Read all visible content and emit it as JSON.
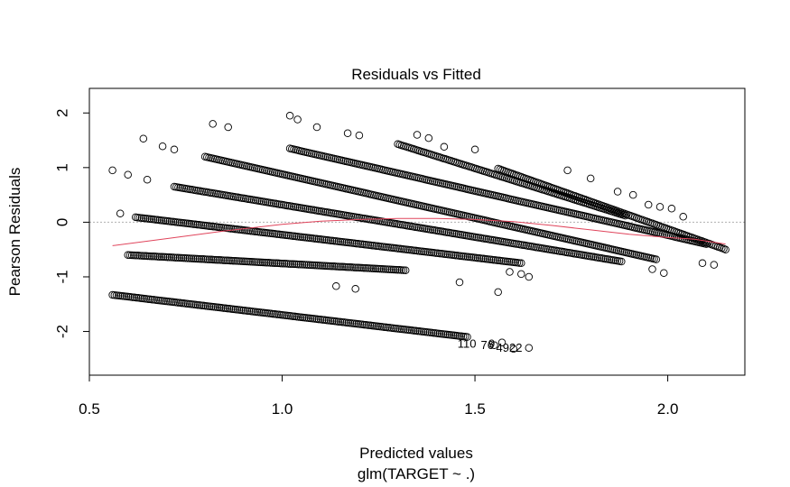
{
  "chart_data": {
    "type": "scatter",
    "title": "Residuals vs Fitted",
    "xlabel": "Predicted values",
    "xlabel2": "glm(TARGET ~ .)",
    "ylabel": "Pearson Residuals",
    "xlim": [
      0.5,
      2.2
    ],
    "ylim": [
      -2.8,
      2.45
    ],
    "xticks": [
      "0.5",
      "1.0",
      "1.5",
      "2.0"
    ],
    "xtick_values": [
      0.5,
      1.0,
      1.5,
      2.0
    ],
    "yticks": [
      "-2",
      "-1",
      "0",
      "1",
      "2"
    ],
    "ytick_values": [
      -2,
      -1,
      0,
      1,
      2
    ],
    "grid": false,
    "reference_line": {
      "y": 0,
      "style": "dotted",
      "color": "#b0b0b0"
    },
    "colors": {
      "points": "#000000",
      "smooth": "#e0455c",
      "reference": "#b0b0b0"
    },
    "bands": [
      {
        "x_start": 0.56,
        "x_end": 1.48,
        "y_start": -1.33,
        "y_end": -2.1
      },
      {
        "x_start": 0.6,
        "x_end": 1.32,
        "y_start": -0.6,
        "y_end": -0.88
      },
      {
        "x_start": 0.62,
        "x_end": 1.62,
        "y_start": 0.09,
        "y_end": -0.75
      },
      {
        "x_start": 0.72,
        "x_end": 1.88,
        "y_start": 0.65,
        "y_end": -0.72
      },
      {
        "x_start": 0.8,
        "x_end": 1.97,
        "y_start": 1.2,
        "y_end": -0.68
      },
      {
        "x_start": 1.02,
        "x_end": 2.1,
        "y_start": 1.35,
        "y_end": -0.4
      },
      {
        "x_start": 1.3,
        "x_end": 1.89,
        "y_start": 1.43,
        "y_end": 0.12
      },
      {
        "x_start": 1.56,
        "x_end": 2.15,
        "y_start": 0.98,
        "y_end": -0.5
      }
    ],
    "extra_points": [
      [
        0.56,
        0.95
      ],
      [
        0.58,
        0.16
      ],
      [
        0.6,
        0.87
      ],
      [
        0.64,
        1.53
      ],
      [
        0.65,
        0.78
      ],
      [
        0.69,
        1.39
      ],
      [
        0.72,
        1.33
      ],
      [
        0.82,
        1.8
      ],
      [
        0.86,
        1.74
      ],
      [
        1.02,
        1.95
      ],
      [
        1.04,
        1.88
      ],
      [
        1.09,
        1.74
      ],
      [
        1.14,
        -1.17
      ],
      [
        1.17,
        1.63
      ],
      [
        1.19,
        -1.22
      ],
      [
        1.2,
        1.59
      ],
      [
        1.35,
        1.6
      ],
      [
        1.38,
        1.54
      ],
      [
        1.42,
        1.38
      ],
      [
        1.46,
        -1.1
      ],
      [
        1.5,
        1.33
      ],
      [
        1.56,
        -1.28
      ],
      [
        1.59,
        -0.91
      ],
      [
        1.62,
        -0.95
      ],
      [
        1.64,
        -1.0
      ],
      [
        1.74,
        0.95
      ],
      [
        1.8,
        0.8
      ],
      [
        1.87,
        0.56
      ],
      [
        1.91,
        0.5
      ],
      [
        1.95,
        0.32
      ],
      [
        1.98,
        0.28
      ],
      [
        2.01,
        0.25
      ],
      [
        2.04,
        0.1
      ],
      [
        1.96,
        -0.86
      ],
      [
        1.99,
        -0.93
      ],
      [
        2.09,
        -0.75
      ],
      [
        2.12,
        -0.78
      ],
      [
        1.55,
        -2.25
      ],
      [
        1.57,
        -2.2
      ],
      [
        1.6,
        -2.32
      ],
      [
        1.64,
        -2.3
      ]
    ],
    "smooth_line": [
      [
        0.56,
        -0.43
      ],
      [
        0.7,
        -0.3
      ],
      [
        0.85,
        -0.16
      ],
      [
        1.0,
        -0.04
      ],
      [
        1.1,
        0.02
      ],
      [
        1.2,
        0.05
      ],
      [
        1.3,
        0.07
      ],
      [
        1.4,
        0.07
      ],
      [
        1.5,
        0.05
      ],
      [
        1.6,
        0.01
      ],
      [
        1.7,
        -0.06
      ],
      [
        1.8,
        -0.14
      ],
      [
        1.9,
        -0.22
      ],
      [
        2.0,
        -0.28
      ],
      [
        2.07,
        -0.31
      ],
      [
        2.15,
        -0.4
      ]
    ],
    "annotations": [
      {
        "text": "110",
        "x": 1.455,
        "y": -2.3
      },
      {
        "text": "76",
        "x": 1.515,
        "y": -2.32
      },
      {
        "text": "9",
        "x": 1.535,
        "y": -2.3
      },
      {
        "text": "4922",
        "x": 1.555,
        "y": -2.37
      }
    ]
  }
}
